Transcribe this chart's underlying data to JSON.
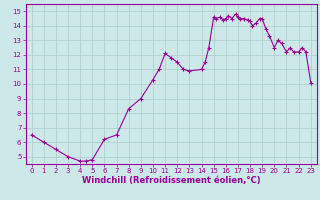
{
  "line_color": "#990099",
  "bg_color": "#cce8e8",
  "grid_color": "#aacccc",
  "xlabel": "Windchill (Refroidissement éolien,°C)",
  "xlabel_color": "#990099",
  "tick_color": "#990099",
  "axis_color": "#990099",
  "ylim": [
    4.5,
    15.5
  ],
  "yticks": [
    5,
    6,
    7,
    8,
    9,
    10,
    11,
    12,
    13,
    14,
    15
  ],
  "xticks": [
    0,
    1,
    2,
    3,
    4,
    5,
    6,
    7,
    8,
    9,
    10,
    11,
    12,
    13,
    14,
    15,
    16,
    17,
    18,
    19,
    20,
    21,
    22,
    23
  ],
  "xlim": [
    -0.5,
    23.5
  ],
  "data_x": [
    0,
    1,
    2,
    3,
    4,
    4.5,
    5,
    6,
    7,
    8,
    9,
    10,
    10.5,
    11,
    11.5,
    12,
    12.5,
    13,
    14,
    14.3,
    14.6,
    15,
    15.2,
    15.5,
    15.8,
    16,
    16.2,
    16.5,
    16.8,
    17,
    17.2,
    17.5,
    17.8,
    18,
    18.2,
    18.5,
    18.8,
    19,
    19.3,
    19.6,
    20,
    20.3,
    20.6,
    21,
    21.3,
    21.6,
    22,
    22.3,
    22.6,
    23
  ],
  "data_y": [
    6.5,
    6.0,
    5.5,
    5.0,
    4.7,
    4.7,
    4.8,
    6.2,
    6.5,
    8.3,
    9.0,
    10.3,
    11.0,
    12.1,
    11.8,
    11.5,
    11.0,
    10.9,
    11.0,
    11.5,
    12.5,
    14.6,
    14.5,
    14.6,
    14.4,
    14.5,
    14.7,
    14.5,
    14.8,
    14.6,
    14.5,
    14.5,
    14.4,
    14.3,
    14.0,
    14.2,
    14.5,
    14.5,
    13.8,
    13.3,
    12.5,
    13.0,
    12.8,
    12.2,
    12.5,
    12.2,
    12.2,
    12.5,
    12.2,
    10.1
  ],
  "tick_fontsize": 5.0,
  "xlabel_fontsize": 6.0
}
